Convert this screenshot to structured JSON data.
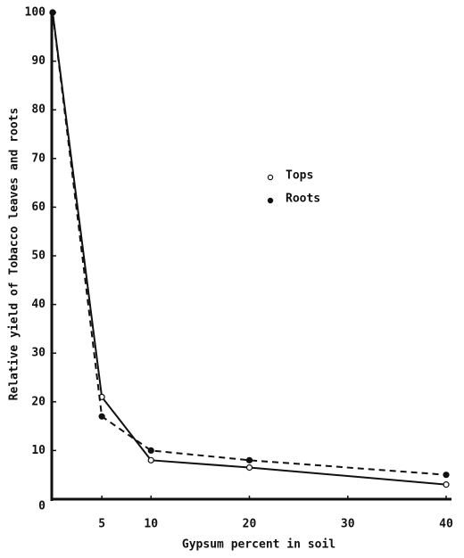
{
  "chart_data": {
    "type": "line",
    "x_label": "Gypsum percent in soil",
    "y_label": "Relative yield of Tobacco leaves and roots",
    "x": [
      0,
      5,
      10,
      20,
      40
    ],
    "series": [
      {
        "name": "Tops",
        "color": "#111111",
        "dash": false,
        "marker": "open",
        "values": [
          100,
          21,
          8,
          6.5,
          3
        ]
      },
      {
        "name": "Roots",
        "color": "#111111",
        "dash": true,
        "marker": "filled",
        "values": [
          100,
          17,
          10,
          8,
          5
        ]
      }
    ],
    "xlim": [
      0,
      40
    ],
    "xticks": [
      5,
      10,
      20,
      30,
      40
    ],
    "ylim": [
      0,
      100
    ],
    "yticks": [
      0,
      10,
      20,
      30,
      40,
      50,
      60,
      70,
      80,
      90,
      100
    ],
    "grid": false
  }
}
